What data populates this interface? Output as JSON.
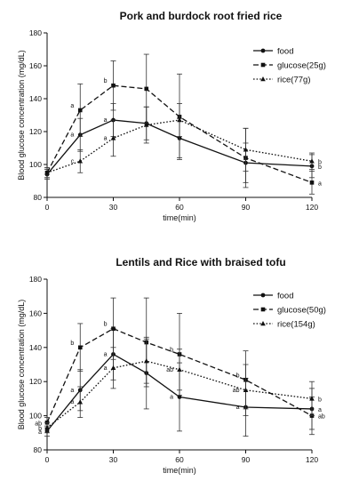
{
  "chart_data": [
    {
      "type": "line",
      "title": "Pork and burdock root fried rice",
      "xlabel": "time(min)",
      "ylabel": "Blood glucose concentration (mg/dL)",
      "x": [
        0,
        15,
        30,
        45,
        60,
        90,
        120
      ],
      "x_ticks": [
        0,
        30,
        60,
        90,
        120
      ],
      "y_ticks": [
        80,
        100,
        120,
        140,
        160,
        180
      ],
      "xlim": [
        0,
        120
      ],
      "ylim": [
        80,
        180
      ],
      "legend_position": "top-right",
      "series": [
        {
          "name": "food",
          "style": "solid",
          "marker": "circle",
          "values": [
            94,
            118,
            127,
            125,
            116,
            101,
            99
          ],
          "err": [
            3,
            10,
            10,
            10,
            12,
            12,
            7
          ],
          "letters": [
            "",
            "a",
            "a",
            "",
            "",
            "",
            "b"
          ]
        },
        {
          "name": "glucose(25g)",
          "style": "dashed",
          "marker": "square",
          "values": [
            95,
            133,
            148,
            146,
            129,
            104,
            89
          ],
          "err": [
            3,
            16,
            15,
            21,
            26,
            18,
            7
          ],
          "letters": [
            "",
            "a",
            "b",
            "",
            "",
            "",
            "a"
          ]
        },
        {
          "name": "rice(77g)",
          "style": "dotted",
          "marker": "triangle",
          "values": [
            95,
            102,
            116,
            124,
            127,
            109,
            102
          ],
          "err": [
            3,
            7,
            11,
            11,
            10,
            13,
            5
          ],
          "letters": [
            "",
            "c",
            "a",
            "",
            "",
            "",
            "b"
          ]
        }
      ]
    },
    {
      "type": "line",
      "title": "Lentils and Rice with braised tofu",
      "xlabel": "time(min)",
      "ylabel": "Blood glucose concentration (mg/dL)",
      "x": [
        0,
        15,
        30,
        45,
        60,
        90,
        120
      ],
      "x_ticks": [
        0,
        30,
        60,
        90,
        120
      ],
      "y_ticks": [
        80,
        100,
        120,
        140,
        160,
        180
      ],
      "xlim": [
        0,
        120
      ],
      "ylim": [
        80,
        180
      ],
      "legend_position": "top-right",
      "series": [
        {
          "name": "food",
          "style": "solid",
          "marker": "circle",
          "values": [
            91,
            115,
            136,
            125,
            111,
            105,
            104
          ],
          "err": [
            3,
            12,
            15,
            21,
            20,
            17,
            12
          ],
          "letters": [
            "a",
            "a",
            "a",
            "",
            "a",
            "a",
            "a"
          ]
        },
        {
          "name": "glucose(50g)",
          "style": "dashed",
          "marker": "square",
          "values": [
            96,
            140,
            151,
            143,
            136,
            121,
            100
          ],
          "err": [
            3,
            14,
            18,
            26,
            24,
            17,
            11
          ],
          "letters": [
            "ab",
            "b",
            "b",
            "",
            "b",
            "b",
            "ab"
          ]
        },
        {
          "name": "rice(154g)",
          "style": "dotted",
          "marker": "triangle",
          "values": [
            93,
            108,
            128,
            132,
            127,
            115,
            110
          ],
          "err": [
            3,
            9,
            12,
            13,
            12,
            15,
            10
          ],
          "letters": [
            "b",
            "a",
            "a",
            "",
            "ab",
            "ab",
            "b"
          ]
        }
      ]
    }
  ]
}
